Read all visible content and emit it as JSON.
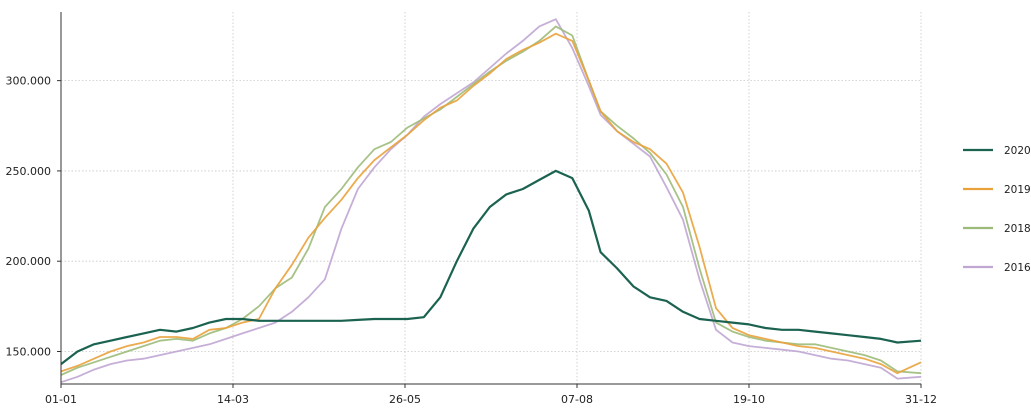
{
  "chart_data": {
    "type": "line",
    "x_ticks": [
      "01-01",
      "14-03",
      "26-05",
      "07-08",
      "19-10",
      "31-12"
    ],
    "y_ticks": [
      "150.000",
      "200.000",
      "250.000",
      "300.000"
    ],
    "y_tick_values": [
      150000,
      200000,
      250000,
      300000
    ],
    "ylim": [
      132000,
      338000
    ],
    "xlim": [
      1,
      366
    ],
    "grid": true,
    "legend_position": "right",
    "series": [
      {
        "name": "2020",
        "color": "#1b6350",
        "x": [
          1,
          8,
          15,
          22,
          29,
          36,
          43,
          50,
          57,
          64,
          71,
          78,
          85,
          92,
          99,
          106,
          113,
          120,
          127,
          134,
          141,
          148,
          155,
          162,
          169,
          176,
          183,
          190,
          197,
          204,
          211,
          218,
          225,
          230,
          237,
          244,
          251,
          258,
          265,
          272,
          279,
          286,
          293,
          300,
          307,
          314,
          321,
          328,
          335,
          342,
          349,
          356,
          366
        ],
        "values": [
          143000,
          150000,
          154000,
          156000,
          158000,
          160000,
          162000,
          161000,
          163000,
          166000,
          168000,
          168000,
          167000,
          167000,
          167000,
          167000,
          167000,
          167000,
          167500,
          168000,
          168000,
          168000,
          169000,
          180000,
          200000,
          218000,
          230000,
          237000,
          240000,
          245000,
          250000,
          246000,
          228000,
          205000,
          196000,
          186000,
          180000,
          178000,
          172000,
          168000,
          167000,
          166000,
          165000,
          163000,
          162000,
          162000,
          161000,
          160000,
          159000,
          158000,
          157000,
          155000,
          156000
        ]
      },
      {
        "name": "2019",
        "color": "#e9a23b",
        "x": [
          1,
          8,
          15,
          22,
          29,
          36,
          43,
          50,
          57,
          64,
          71,
          78,
          85,
          92,
          99,
          106,
          113,
          120,
          127,
          134,
          141,
          148,
          155,
          162,
          169,
          176,
          183,
          190,
          197,
          204,
          211,
          218,
          225,
          230,
          237,
          244,
          251,
          258,
          265,
          272,
          279,
          286,
          293,
          300,
          307,
          314,
          321,
          328,
          335,
          342,
          349,
          356,
          366
        ],
        "values": [
          139000,
          142000,
          146000,
          150000,
          153000,
          155000,
          158000,
          158000,
          157000,
          162000,
          163000,
          166000,
          168000,
          185000,
          198000,
          213000,
          224000,
          234000,
          246000,
          256000,
          263000,
          270000,
          278000,
          285000,
          289000,
          297000,
          304000,
          312000,
          317000,
          321000,
          326000,
          322000,
          300000,
          283000,
          272000,
          266000,
          262000,
          254000,
          238000,
          208000,
          174000,
          163000,
          159000,
          157000,
          155000,
          153000,
          152000,
          150000,
          148000,
          146000,
          143000,
          138000,
          144000
        ]
      },
      {
        "name": "2018",
        "color": "#9cbb79",
        "x": [
          1,
          8,
          15,
          22,
          29,
          36,
          43,
          50,
          57,
          64,
          71,
          78,
          85,
          92,
          99,
          106,
          113,
          120,
          127,
          134,
          141,
          148,
          155,
          162,
          169,
          176,
          183,
          190,
          197,
          204,
          211,
          218,
          225,
          230,
          237,
          244,
          251,
          258,
          265,
          272,
          279,
          286,
          293,
          300,
          307,
          314,
          321,
          328,
          335,
          342,
          349,
          356,
          366
        ],
        "values": [
          137000,
          141000,
          144000,
          147000,
          150000,
          153000,
          156000,
          157000,
          156000,
          160000,
          163000,
          168000,
          175000,
          185000,
          191000,
          207000,
          230000,
          240000,
          252000,
          262000,
          266000,
          274000,
          279000,
          284000,
          291000,
          298000,
          305000,
          311000,
          316000,
          322000,
          330000,
          325000,
          300000,
          283000,
          275000,
          268000,
          260000,
          248000,
          230000,
          196000,
          166000,
          161000,
          158000,
          156000,
          155000,
          154000,
          154000,
          152000,
          150000,
          148000,
          145000,
          139000,
          138000
        ]
      },
      {
        "name": "2016",
        "color": "#c0a6d3",
        "x": [
          1,
          8,
          15,
          22,
          29,
          36,
          43,
          50,
          57,
          64,
          71,
          78,
          85,
          92,
          99,
          106,
          113,
          120,
          127,
          134,
          141,
          148,
          155,
          162,
          169,
          176,
          183,
          190,
          197,
          204,
          211,
          218,
          225,
          230,
          237,
          244,
          251,
          258,
          265,
          272,
          279,
          286,
          293,
          300,
          307,
          314,
          321,
          328,
          335,
          342,
          349,
          356,
          366
        ],
        "values": [
          133000,
          136000,
          140000,
          143000,
          145000,
          146000,
          148000,
          150000,
          152000,
          154000,
          157000,
          160000,
          163000,
          166000,
          172000,
          180000,
          190000,
          218000,
          240000,
          252000,
          262000,
          270000,
          280000,
          287000,
          293000,
          299000,
          307000,
          315000,
          322000,
          330000,
          334000,
          318000,
          297000,
          281000,
          272000,
          265000,
          258000,
          241000,
          223000,
          190000,
          162000,
          155000,
          153000,
          152000,
          151000,
          150000,
          148000,
          146000,
          145000,
          143000,
          141000,
          135000,
          136000
        ]
      }
    ]
  }
}
